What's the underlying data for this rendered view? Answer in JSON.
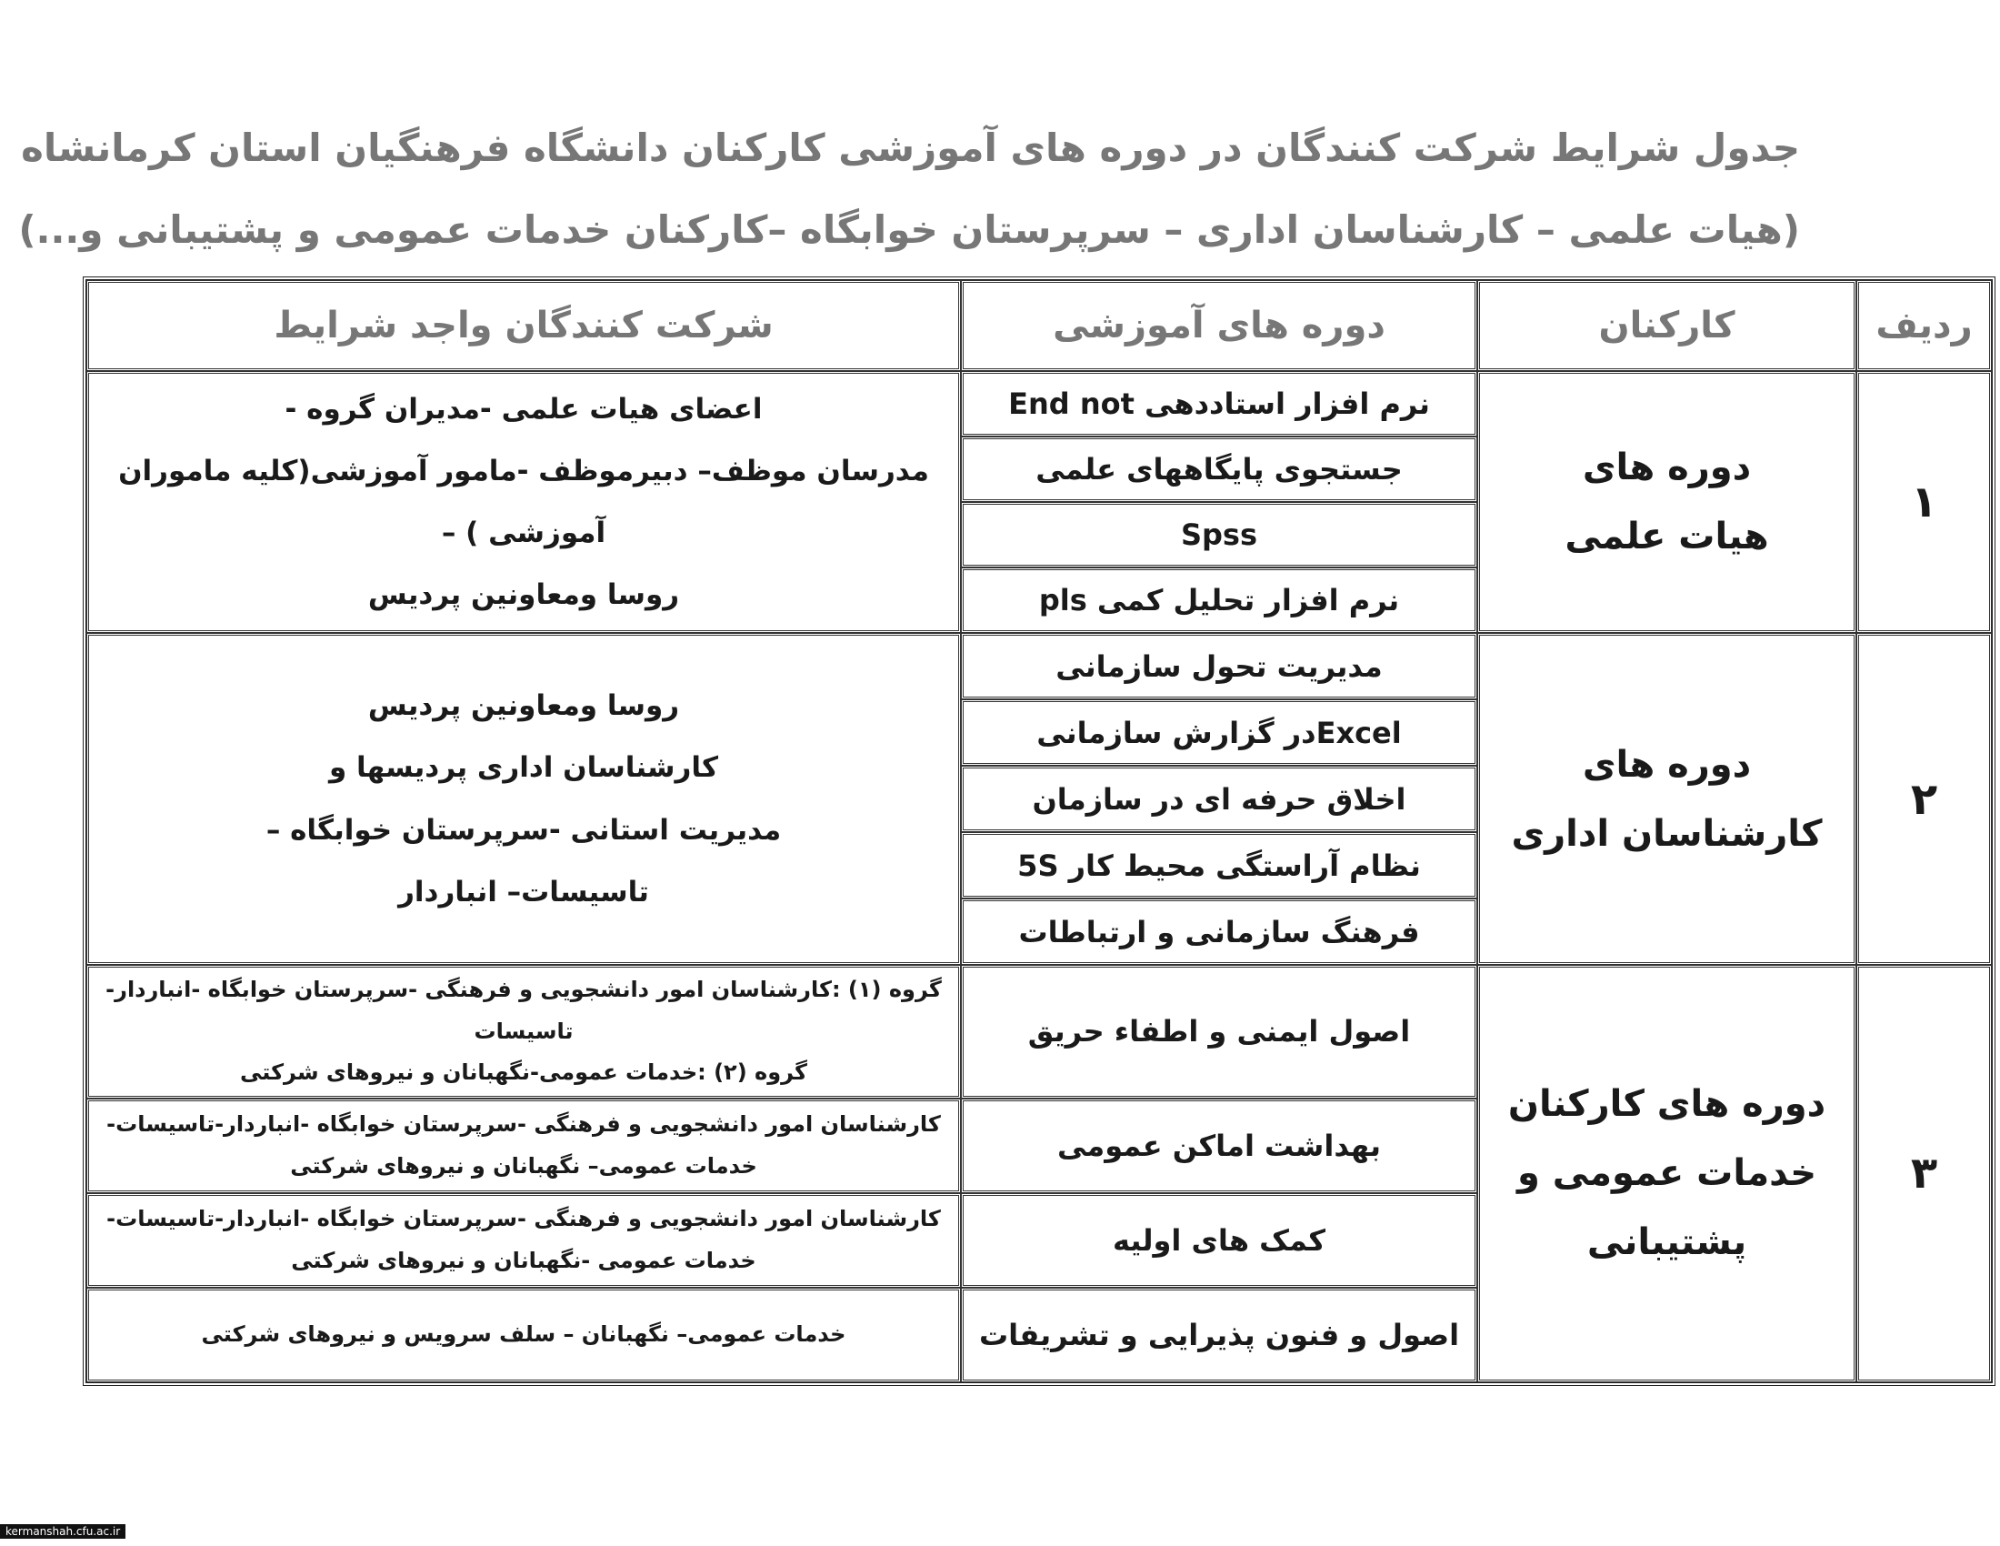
{
  "header": {
    "title": "جدول شرایط شرکت کنندگان در دوره های آموزشی کارکنان دانشگاه فرهنگیان استان کرمانشاه",
    "subtitle": "(هیات علمی – کارشناسان اداری – سرپرستان خوابگاه –کارکنان خدمات عمومی و پشتیبانی و...)"
  },
  "table": {
    "columns": [
      "ردیف",
      "کارکنان",
      "دوره های آموزشی",
      "شرکت کنندگان واجد شرایط"
    ],
    "rows": [
      {
        "number": "۱",
        "staff": [
          "دوره های",
          "هیات علمی"
        ],
        "courses": [
          "نرم افزار استاددهی End not",
          "جستجوی پایگاههای علمی",
          "Spss",
          "نرم افزار تحلیل کمی pls"
        ],
        "participants": [
          "اعضای هیات علمی -مدیران گروه -",
          "مدرسان موظف– دبیرموظف -مامور آموزشی(کلیه ماموران آموزشی ) –",
          "روسا ومعاونین پردیس"
        ]
      },
      {
        "number": "۲",
        "staff": [
          "دوره های",
          "کارشناسان اداری"
        ],
        "courses": [
          "مدیریت تحول سازمانی",
          "Excelدر گزارش سازمانی",
          "اخلاق حرفه ای در سازمان",
          "نظام آراستگی محیط کار 5S",
          "فرهنگ سازمانی و ارتباطات"
        ],
        "participants": [
          "روسا ومعاونین پردیس",
          "کارشناسان اداری پردیسها و",
          "مدیریت استانی -سرپرستان خوابگاه –",
          "تاسیسات– انباردار"
        ]
      },
      {
        "number": "۳",
        "staff": [
          "دوره های کارکنان",
          "خدمات عمومی و",
          "پشتیبانی"
        ],
        "courses": [
          "اصول ایمنی و اطفاء حریق",
          "بهداشت اماکن عمومی",
          "کمک های اولیه",
          "اصول و فنون پذیرایی و تشریفات"
        ],
        "participants": [
          [
            "گروه (۱) :کارشناسان امور دانشجویی و فرهنگی -سرپرستان خوابگاه -انباردار-تاسیسات",
            "گروه (۲) :خدمات عمومی-نگهبانان و نیروهای شرکتی"
          ],
          [
            "کارشناسان امور دانشجویی و فرهنگی -سرپرستان خوابگاه -انباردار-تاسیسات-",
            "خدمات عمومی– نگهبانان و نیروهای شرکتی"
          ],
          [
            "کارشناسان امور دانشجویی و فرهنگی -سرپرستان خوابگاه -انباردار-تاسیسات-",
            "خدمات عمومی -نگهبانان و نیروهای شرکتی"
          ],
          [
            "خدمات عمومی– نگهبانان – سلف سرویس و نیروهای شرکتی"
          ]
        ]
      }
    ]
  },
  "footer": {
    "site": "kermanshah.cfu.ac.ir"
  }
}
